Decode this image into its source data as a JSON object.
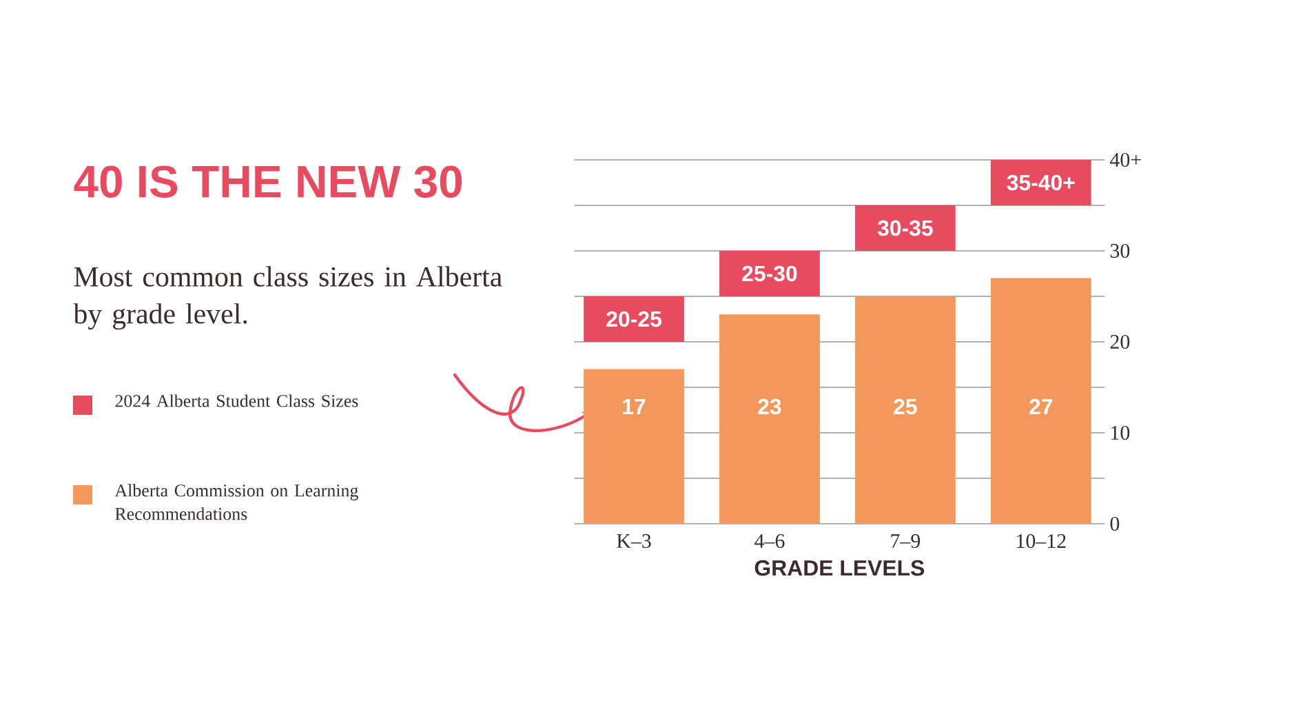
{
  "chart_data": {
    "type": "bar",
    "title": "40 IS THE NEW 30",
    "subtitle": "Most common class sizes in Alberta by grade level.",
    "xlabel": "GRADE LEVELS",
    "categories": [
      "K–3",
      "4–6",
      "7–9",
      "10–12"
    ],
    "series": [
      {
        "name": "2024 Alberta Student Class Sizes",
        "color": "#e84a5f",
        "base": [
          20,
          25,
          30,
          35
        ],
        "values": [
          5,
          5,
          5,
          5
        ],
        "value_labels": [
          "20-25",
          "25-30",
          "30-35",
          "35-40+"
        ]
      },
      {
        "name": "Alberta Commission on Learning Recommendations",
        "color": "#f4975a",
        "values": [
          17,
          23,
          25,
          27
        ],
        "value_labels": [
          "17",
          "23",
          "25",
          "27"
        ]
      }
    ],
    "ylim": [
      0,
      40
    ],
    "yticks": [
      0,
      {
        "value": 5,
        "label": null
      },
      10,
      {
        "value": 15,
        "label": null
      },
      20,
      {
        "value": 25,
        "label": null
      },
      30,
      {
        "value": 35,
        "label": null
      },
      {
        "value": 40,
        "label": "40+"
      }
    ],
    "grid": "y",
    "legend": "left"
  }
}
